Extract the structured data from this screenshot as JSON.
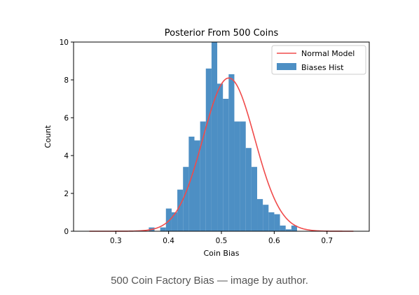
{
  "chart_data": {
    "type": "bar",
    "title": "Posterior From 500 Coins",
    "xlabel": "Coin Bias",
    "ylabel": "Count",
    "xlim": [
      0.22,
      0.78
    ],
    "ylim": [
      0,
      10
    ],
    "xticks": [
      "0.3",
      "0.4",
      "0.5",
      "0.6",
      "0.7"
    ],
    "yticks": [
      "0",
      "2",
      "4",
      "6",
      "8",
      "10"
    ],
    "grid": false,
    "legend_position": "top-right",
    "histogram": {
      "name": "Biases Hist",
      "color": "#4d8fc4",
      "bin_width": 0.0108,
      "bin_lefts": [
        0.3625,
        0.3733,
        0.3841,
        0.3949,
        0.4057,
        0.4165,
        0.4273,
        0.4381,
        0.4489,
        0.4597,
        0.4705,
        0.4813,
        0.4921,
        0.5029,
        0.5137,
        0.5245,
        0.5353,
        0.5461,
        0.5569,
        0.5677,
        0.5785,
        0.5893,
        0.6001,
        0.6109,
        0.6217,
        0.6325,
        0.6433
      ],
      "counts": [
        0.2,
        0,
        0.2,
        1.2,
        1.0,
        2.2,
        3.4,
        5.0,
        4.8,
        5.8,
        8.6,
        10.0,
        7.8,
        7.0,
        8.3,
        5.8,
        5.8,
        4.4,
        3.4,
        1.7,
        1.4,
        1.0,
        0.9,
        0.3,
        0.1,
        0.3,
        0
      ]
    },
    "curve": {
      "name": "Normal Model",
      "color": "#f04b4b",
      "mean": 0.514,
      "std": 0.049,
      "peak": 8.1,
      "x_range": [
        0.25,
        0.75
      ]
    }
  },
  "caption": "500 Coin Factory Bias — image by author."
}
